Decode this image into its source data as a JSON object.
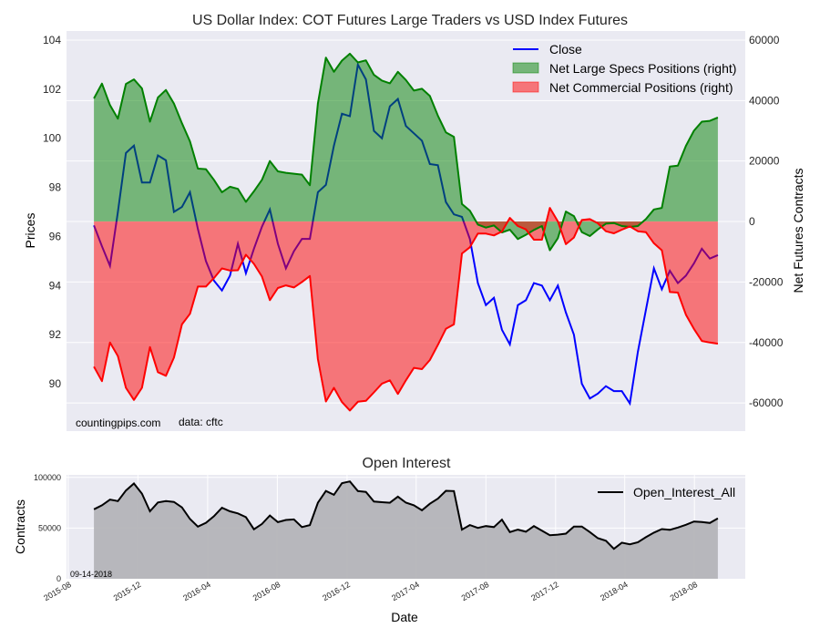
{
  "chart_data": [
    {
      "type": "area",
      "title": "US Dollar Index: COT Futures Large Traders vs USD Index Futures",
      "ylabel": "Prices",
      "ylabel_right": "Net Futures Contracts",
      "xlim": [
        "2015-07-29",
        "2018-10-29"
      ],
      "ylim": [
        88.07,
        104.37
      ],
      "ylim_right": [
        -69300,
        63000
      ],
      "yticks": [
        90,
        92,
        94,
        96,
        98,
        100,
        102,
        104
      ],
      "yticks_right": [
        -60000,
        -40000,
        -20000,
        0,
        20000,
        40000,
        60000
      ],
      "grid": true,
      "legend_position": "top-right",
      "annotations": [
        "countingpips.com",
        "data: cftc"
      ],
      "x": [
        "2015-09-15",
        "2015-09-29",
        "2015-10-13",
        "2015-10-27",
        "2015-11-10",
        "2015-11-24",
        "2015-12-08",
        "2015-12-22",
        "2016-01-05",
        "2016-01-19",
        "2016-02-02",
        "2016-02-16",
        "2016-03-01",
        "2016-03-15",
        "2016-03-29",
        "2016-04-12",
        "2016-04-26",
        "2016-05-10",
        "2016-05-24",
        "2016-06-07",
        "2016-06-21",
        "2016-07-05",
        "2016-07-19",
        "2016-08-02",
        "2016-08-16",
        "2016-08-30",
        "2016-09-13",
        "2016-09-27",
        "2016-10-11",
        "2016-10-25",
        "2016-11-08",
        "2016-11-22",
        "2016-12-06",
        "2016-12-20",
        "2017-01-03",
        "2017-01-17",
        "2017-01-31",
        "2017-02-14",
        "2017-02-28",
        "2017-03-14",
        "2017-03-28",
        "2017-04-11",
        "2017-04-25",
        "2017-05-09",
        "2017-05-23",
        "2017-06-06",
        "2017-06-20",
        "2017-07-04",
        "2017-07-18",
        "2017-08-01",
        "2017-08-15",
        "2017-08-29",
        "2017-09-12",
        "2017-09-26",
        "2017-10-10",
        "2017-10-24",
        "2017-11-07",
        "2017-11-21",
        "2017-12-05",
        "2017-12-19",
        "2018-01-02",
        "2018-01-16",
        "2018-01-30",
        "2018-02-13",
        "2018-02-27",
        "2018-03-13",
        "2018-03-27",
        "2018-04-10",
        "2018-04-24",
        "2018-05-08",
        "2018-05-22",
        "2018-06-05",
        "2018-06-19",
        "2018-07-03",
        "2018-07-17",
        "2018-07-31",
        "2018-08-14",
        "2018-08-28",
        "2018-09-11"
      ],
      "series": [
        {
          "name": "Close",
          "axis": "left",
          "kind": "line",
          "color": "#0000ff",
          "values": [
            96.45,
            95.6,
            94.8,
            97.0,
            99.4,
            99.7,
            98.2,
            98.2,
            99.3,
            99.1,
            97.0,
            97.2,
            97.8,
            96.3,
            95.0,
            94.2,
            93.8,
            94.4,
            95.7,
            94.5,
            95.5,
            96.4,
            97.1,
            95.7,
            94.7,
            95.4,
            95.9,
            95.9,
            97.8,
            98.1,
            99.7,
            101.0,
            100.9,
            103.0,
            102.4,
            100.3,
            100.0,
            101.3,
            101.6,
            100.5,
            100.2,
            99.9,
            98.95,
            98.9,
            97.4,
            96.9,
            96.8,
            95.9,
            94.1,
            93.2,
            93.5,
            92.2,
            91.6,
            93.2,
            93.4,
            94.1,
            94.0,
            93.4,
            94.0,
            92.9,
            92.0,
            90.0,
            89.4,
            89.6,
            89.9,
            89.7,
            89.7,
            89.2,
            91.3,
            93.0,
            94.7,
            93.85,
            94.6,
            94.1,
            94.4,
            94.9,
            95.5,
            95.1,
            95.24
          ]
        },
        {
          "name": "Net Large Specs Positions (right)",
          "axis": "right",
          "kind": "area",
          "color": "#008000",
          "values": [
            40700,
            45600,
            38500,
            34000,
            45500,
            47000,
            44000,
            33000,
            41000,
            43500,
            39000,
            32500,
            26500,
            17500,
            17300,
            13800,
            9700,
            11500,
            10800,
            6500,
            10000,
            13800,
            20000,
            16600,
            16100,
            15800,
            15500,
            12000,
            39000,
            54200,
            49500,
            53200,
            55500,
            52600,
            53300,
            48500,
            46600,
            45700,
            49500,
            46800,
            43300,
            43900,
            41500,
            35000,
            29500,
            28000,
            5800,
            3600,
            -1000,
            -2000,
            -1300,
            -3600,
            -2700,
            -5800,
            -4400,
            -2800,
            -1500,
            -9500,
            -5500,
            3300,
            1800,
            -3500,
            -4800,
            -2600,
            -700,
            -500,
            -1500,
            -1800,
            -1500,
            800,
            4000,
            4500,
            18200,
            18500,
            25000,
            30000,
            33000,
            33300,
            34400
          ]
        },
        {
          "name": "Net Commercial Positions (right)",
          "axis": "right",
          "kind": "area",
          "color": "#ff0000",
          "values": [
            -48000,
            -52800,
            -40000,
            -44500,
            -55000,
            -59000,
            -55000,
            -41500,
            -49800,
            -51000,
            -45000,
            -34000,
            -30500,
            -21500,
            -21500,
            -18700,
            -15500,
            -16200,
            -16100,
            -11000,
            -14000,
            -18200,
            -26000,
            -22000,
            -21100,
            -21800,
            -20000,
            -18000,
            -45500,
            -59500,
            -55000,
            -59700,
            -62500,
            -59600,
            -59300,
            -56500,
            -53600,
            -52500,
            -57000,
            -52500,
            -48400,
            -48800,
            -45800,
            -40800,
            -35500,
            -34000,
            -10600,
            -8500,
            -4000,
            -4000,
            -4600,
            -3300,
            1200,
            -1500,
            -2600,
            -6000,
            -6000,
            4500,
            0,
            -7500,
            -5300,
            500,
            800,
            -600,
            -3200,
            -3900,
            -2700,
            -1600,
            -3200,
            -3500,
            -7200,
            -9500,
            -23300,
            -23500,
            -30800,
            -35500,
            -39500,
            -40000,
            -40400
          ]
        }
      ]
    },
    {
      "type": "area",
      "title": "Open Interest",
      "xlabel": "Date",
      "ylabel": "Contracts",
      "xlim": [
        "2015-07-29",
        "2018-10-29"
      ],
      "ylim": [
        0,
        102500
      ],
      "yticks": [
        0,
        50000,
        100000
      ],
      "xticks": [
        "2015-08",
        "2015-12",
        "2016-04",
        "2016-08",
        "2016-12",
        "2017-04",
        "2017-08",
        "2017-12",
        "2018-04",
        "2018-08"
      ],
      "grid": true,
      "legend_position": "top-right",
      "annotation": "09-14-2018",
      "series": [
        {
          "name": "Open_Interest_All",
          "color": "#000000",
          "fill": "#b4b4b8",
          "values": [
            68500,
            72500,
            78000,
            76600,
            87000,
            94000,
            84000,
            66500,
            75300,
            76600,
            75800,
            70400,
            59000,
            51400,
            55200,
            61700,
            70000,
            66500,
            64500,
            60800,
            48800,
            54000,
            62400,
            55800,
            58000,
            58500,
            51000,
            53000,
            75000,
            86600,
            82800,
            94200,
            96000,
            86500,
            85700,
            76200,
            75500,
            75000,
            81000,
            75100,
            72500,
            67500,
            74000,
            79000,
            86800,
            86500,
            48500,
            53000,
            50200,
            52000,
            51000,
            58300,
            46000,
            48500,
            46400,
            52000,
            47500,
            43000,
            43500,
            44500,
            51500,
            51500,
            46000,
            40000,
            37500,
            29500,
            35600,
            34000,
            36000,
            41000,
            45500,
            49000,
            48300,
            50500,
            53200,
            56500,
            56000,
            55000,
            59500
          ]
        }
      ]
    }
  ]
}
